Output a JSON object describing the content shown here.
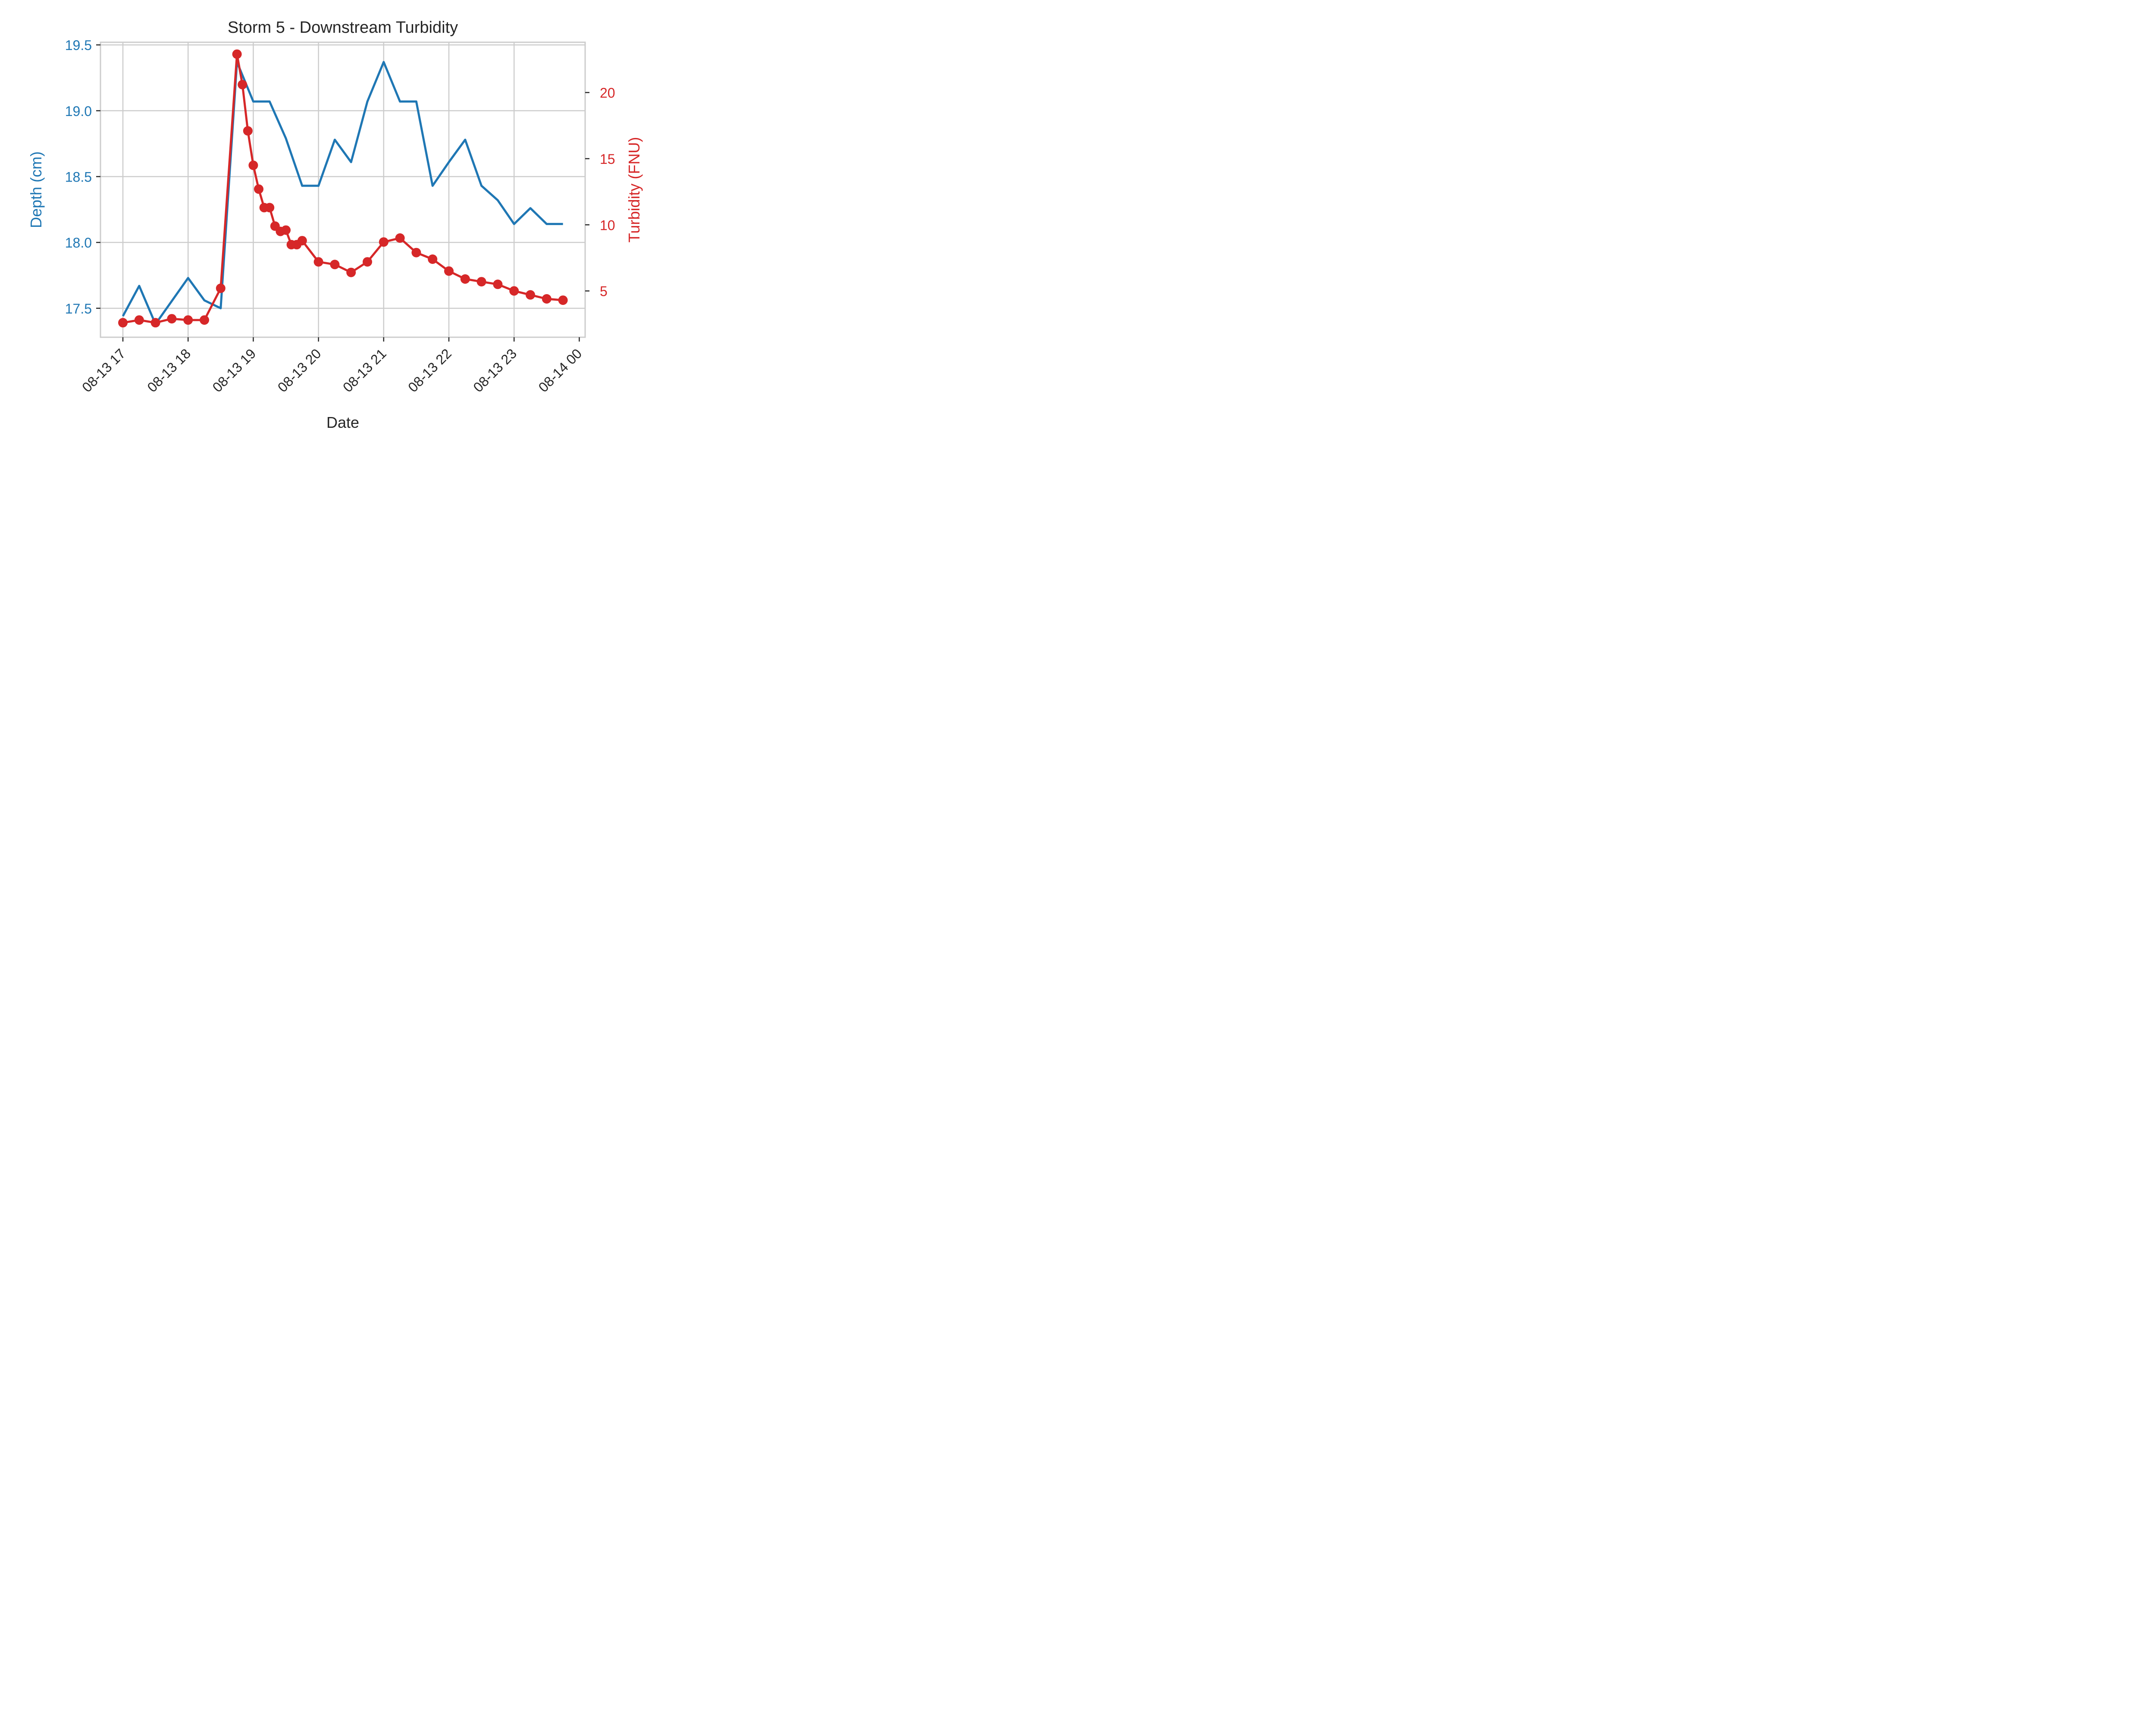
{
  "chart_data": {
    "type": "line",
    "title": "Storm 5 - Downstream Turbidity",
    "xlabel": "Date",
    "ylabel_left": "Depth (cm)",
    "ylabel_right": "Turbidity (FNU)",
    "grid": true,
    "x_ticks": [
      "08-13 17",
      "08-13 18",
      "08-13 19",
      "08-13 20",
      "08-13 21",
      "08-13 22",
      "08-13 23",
      "08-14 00"
    ],
    "y_left_ticks": [
      17.5,
      18.0,
      18.5,
      19.0,
      19.5
    ],
    "y_right_ticks": [
      5,
      10,
      15,
      20
    ],
    "y_left_lim": [
      17.28,
      19.52
    ],
    "y_right_lim": [
      1.5,
      23.8
    ],
    "colors": {
      "depth": "#1f77b4",
      "turbidity": "#d62728",
      "grid": "#cccccc",
      "text": "#262626"
    },
    "series": [
      {
        "axis": "left",
        "marker": false,
        "points": [
          [
            "2023-08-13 17:00",
            17.44
          ],
          [
            "2023-08-13 17:15",
            17.67
          ],
          [
            "2023-08-13 17:30",
            17.38
          ],
          [
            "2023-08-13 18:00",
            17.73
          ],
          [
            "2023-08-13 18:15",
            17.56
          ],
          [
            "2023-08-13 18:30",
            17.5
          ],
          [
            "2023-08-13 18:45",
            19.37
          ],
          [
            "2023-08-13 19:00",
            19.07
          ],
          [
            "2023-08-13 19:15",
            19.07
          ],
          [
            "2023-08-13 19:30",
            18.79
          ],
          [
            "2023-08-13 19:45",
            18.43
          ],
          [
            "2023-08-13 20:00",
            18.43
          ],
          [
            "2023-08-13 20:15",
            18.78
          ],
          [
            "2023-08-13 20:30",
            18.61
          ],
          [
            "2023-08-13 20:45",
            19.07
          ],
          [
            "2023-08-13 21:00",
            19.37
          ],
          [
            "2023-08-13 21:15",
            19.07
          ],
          [
            "2023-08-13 21:30",
            19.07
          ],
          [
            "2023-08-13 21:45",
            18.43
          ],
          [
            "2023-08-13 22:00",
            18.61
          ],
          [
            "2023-08-13 22:15",
            18.78
          ],
          [
            "2023-08-13 22:30",
            18.43
          ],
          [
            "2023-08-13 22:45",
            18.32
          ],
          [
            "2023-08-13 23:00",
            18.14
          ],
          [
            "2023-08-13 23:15",
            18.26
          ],
          [
            "2023-08-13 23:30",
            18.14
          ],
          [
            "2023-08-13 23:45",
            18.14
          ]
        ]
      },
      {
        "axis": "right",
        "marker": true,
        "points": [
          [
            "2023-08-13 17:00",
            2.6
          ],
          [
            "2023-08-13 17:15",
            2.8
          ],
          [
            "2023-08-13 17:30",
            2.6
          ],
          [
            "2023-08-13 17:45",
            2.9
          ],
          [
            "2023-08-13 18:00",
            2.8
          ],
          [
            "2023-08-13 18:15",
            2.8
          ],
          [
            "2023-08-13 18:30",
            5.2
          ],
          [
            "2023-08-13 18:45",
            22.9
          ],
          [
            "2023-08-13 18:50",
            20.6
          ],
          [
            "2023-08-13 18:55",
            17.1
          ],
          [
            "2023-08-13 19:00",
            14.5
          ],
          [
            "2023-08-13 19:05",
            12.7
          ],
          [
            "2023-08-13 19:10",
            11.3
          ],
          [
            "2023-08-13 19:15",
            11.3
          ],
          [
            "2023-08-13 19:20",
            9.9
          ],
          [
            "2023-08-13 19:25",
            9.5
          ],
          [
            "2023-08-13 19:30",
            9.6
          ],
          [
            "2023-08-13 19:35",
            8.5
          ],
          [
            "2023-08-13 19:40",
            8.5
          ],
          [
            "2023-08-13 19:45",
            8.8
          ],
          [
            "2023-08-13 20:00",
            7.2
          ],
          [
            "2023-08-13 20:15",
            7.0
          ],
          [
            "2023-08-13 20:30",
            6.4
          ],
          [
            "2023-08-13 20:45",
            7.2
          ],
          [
            "2023-08-13 21:00",
            8.7
          ],
          [
            "2023-08-13 21:15",
            9.0
          ],
          [
            "2023-08-13 21:30",
            7.9
          ],
          [
            "2023-08-13 21:45",
            7.4
          ],
          [
            "2023-08-13 22:00",
            6.5
          ],
          [
            "2023-08-13 22:15",
            5.9
          ],
          [
            "2023-08-13 22:30",
            5.7
          ],
          [
            "2023-08-13 22:45",
            5.5
          ],
          [
            "2023-08-13 23:00",
            5.0
          ],
          [
            "2023-08-13 23:15",
            4.7
          ],
          [
            "2023-08-13 23:30",
            4.4
          ],
          [
            "2023-08-13 23:45",
            4.3
          ]
        ]
      }
    ]
  }
}
